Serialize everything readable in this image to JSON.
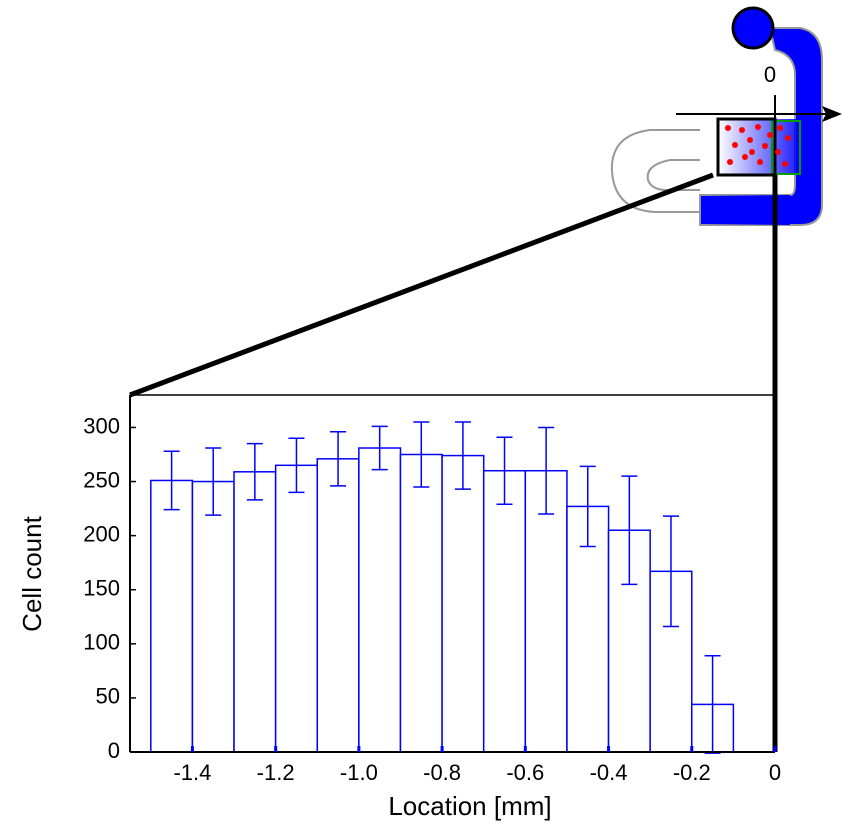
{
  "chart_data": {
    "type": "histogram",
    "xlabel": "Location [mm]",
    "ylabel": "Cell count",
    "bins": [
      -1.5,
      -1.4,
      -1.3,
      -1.2,
      -1.1,
      -1.0,
      -0.9,
      -0.8,
      -0.7,
      -0.6,
      -0.5,
      -0.4,
      -0.3,
      -0.2,
      -0.1
    ],
    "values": [
      251,
      250,
      259,
      265,
      271,
      281,
      275,
      274,
      260,
      260,
      227,
      205,
      167,
      44
    ],
    "errors": [
      27,
      31,
      26,
      25,
      25,
      20,
      30,
      31,
      31,
      40,
      37,
      50,
      51,
      45
    ],
    "color": "#0000ff",
    "xlim": [
      -1.55,
      0
    ],
    "ylim": [
      0,
      330
    ],
    "xticks": [
      -1.4,
      -1.2,
      {
        "value": -1,
        "label": "-1.0"
      },
      -0.8,
      -0.6,
      -0.4,
      -0.2,
      0
    ],
    "yticks": [
      0,
      50,
      100,
      150,
      200,
      250,
      300
    ]
  },
  "diagram": {
    "origin_label": "0"
  }
}
